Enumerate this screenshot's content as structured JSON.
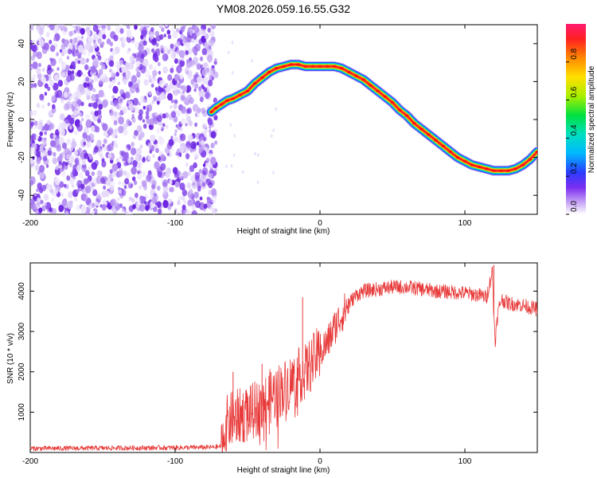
{
  "title": "YM08.2026.059.16.55.G32",
  "chart_data": [
    {
      "type": "heatmap",
      "title": "YM08.2026.059.16.55.G32",
      "xlabel": "Height of straight line (km)",
      "ylabel": "Frequency (Hz)",
      "xlim": [
        -200,
        150
      ],
      "ylim": [
        -50,
        50
      ],
      "xticks": [
        -200,
        -100,
        0,
        100
      ],
      "yticks": [
        -40,
        -20,
        0,
        20,
        40
      ],
      "noise_region_x": [
        -200,
        -75
      ],
      "ridge": {
        "x": [
          -75,
          -72,
          -68,
          -64,
          -60,
          -55,
          -50,
          -45,
          -40,
          -35,
          -30,
          -25,
          -20,
          -15,
          -10,
          -5,
          0,
          5,
          10,
          15,
          20,
          25,
          30,
          35,
          40,
          45,
          50,
          55,
          60,
          65,
          70,
          75,
          80,
          85,
          90,
          95,
          100,
          105,
          110,
          115,
          120,
          125,
          130,
          135,
          140,
          145,
          150
        ],
        "freq": [
          4,
          6,
          8,
          10,
          11,
          13,
          15,
          19,
          22,
          25,
          27,
          28,
          29,
          29,
          28,
          28,
          28,
          28,
          28,
          27,
          25,
          23,
          21,
          18,
          15,
          12,
          9,
          5,
          2,
          -2,
          -5,
          -8,
          -11,
          -14,
          -17,
          -20,
          -22,
          -24,
          -25,
          -26,
          -27,
          -27,
          -27,
          -26,
          -24,
          -21,
          -17
        ]
      },
      "colorbar": {
        "label": "Normalized spectral amplitude",
        "range": [
          0.0,
          1.0
        ],
        "ticks": [
          0.0,
          0.2,
          0.4,
          0.6,
          0.8
        ],
        "tick_labels": [
          "0.0",
          "0.2",
          "0.4",
          "0.6",
          "0.8"
        ]
      }
    },
    {
      "type": "line",
      "xlabel": "Height of straight line (km)",
      "ylabel": "SNR (10 * v/v)",
      "xlim": [
        -200,
        150
      ],
      "ylim": [
        0,
        4700
      ],
      "xticks": [
        -200,
        -100,
        0,
        100
      ],
      "yticks": [
        1000,
        2000,
        3000,
        4000
      ],
      "color": "#e83a3a",
      "series": [
        {
          "name": "SNR",
          "x": [
            -200,
            -150,
            -100,
            -75,
            -68,
            -65,
            -60,
            -55,
            -50,
            -45,
            -40,
            -35,
            -30,
            -25,
            -20,
            -15,
            -10,
            -5,
            0,
            5,
            10,
            15,
            20,
            25,
            30,
            40,
            50,
            60,
            70,
            80,
            90,
            100,
            110,
            115,
            119,
            120,
            121,
            123,
            125,
            130,
            140,
            150
          ],
          "y": [
            100,
            110,
            120,
            130,
            150,
            700,
            850,
            900,
            950,
            1050,
            1150,
            1350,
            1500,
            1600,
            1750,
            1900,
            2000,
            2250,
            2500,
            2700,
            3100,
            3400,
            3700,
            3900,
            4000,
            4050,
            4100,
            4100,
            4050,
            4000,
            3980,
            3950,
            3900,
            3850,
            4500,
            3400,
            2800,
            3500,
            3800,
            3700,
            3650,
            3550
          ]
        }
      ],
      "spikes": [
        {
          "x": -12,
          "y": 3850
        },
        {
          "x": -60,
          "y": 2000
        },
        {
          "x": -40,
          "y": 2200
        },
        {
          "x": 120,
          "y": 4650
        },
        {
          "x": 121,
          "y": 2700
        }
      ]
    }
  ]
}
